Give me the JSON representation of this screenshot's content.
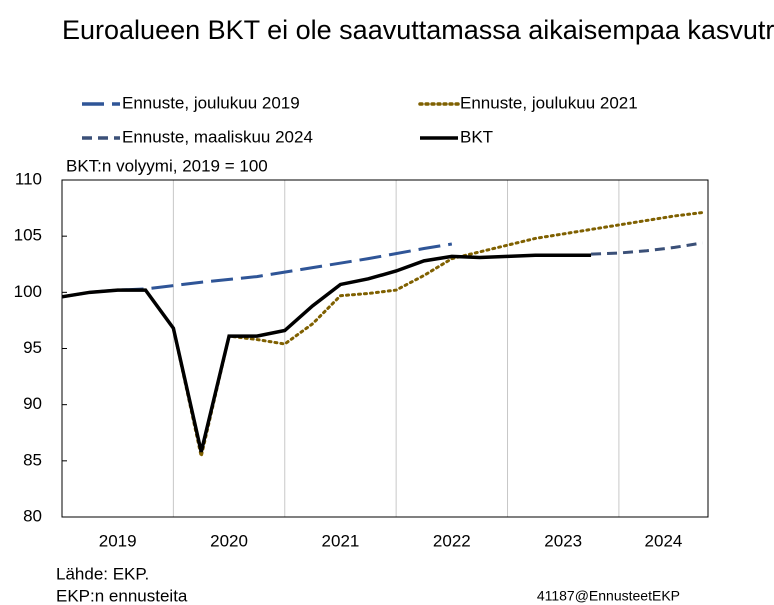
{
  "chart_data": {
    "type": "line",
    "title": "Euroalueen BKT ei ole saavuttamassa aikaisempaa kasvutrendiään",
    "subtitle": "BKT:n volyymi, 2019 = 100",
    "source": "Lähde: EKP.",
    "note": "EKP:n ennusteita",
    "credit": "41187@EnnusteetEKP",
    "xlim": [
      2019,
      2024.8
    ],
    "xticks": [
      {
        "value": 2019.5,
        "label": "2019"
      },
      {
        "value": 2020.5,
        "label": "2020"
      },
      {
        "value": 2021.5,
        "label": "2021"
      },
      {
        "value": 2022.5,
        "label": "2022"
      },
      {
        "value": 2023.5,
        "label": "2023"
      },
      {
        "value": 2024.4,
        "label": "2024"
      }
    ],
    "xgrid": [
      2020,
      2021,
      2022,
      2023,
      2024
    ],
    "ylim": [
      80,
      110
    ],
    "yticks": [
      80,
      85,
      90,
      95,
      100,
      105,
      110
    ],
    "series": [
      {
        "name": "Ennuste, joulukuu 2019",
        "color": "#2f5597",
        "dash": "long",
        "x": [
          2019,
          2019.25,
          2019.5,
          2019.75,
          2020.25,
          2020.75,
          2021.25,
          2021.75,
          2022.25,
          2022.5
        ],
        "values": [
          99.6,
          100.0,
          100.2,
          100.3,
          100.9,
          101.4,
          102.2,
          103.0,
          103.9,
          104.3
        ]
      },
      {
        "name": "Ennuste, joulukuu 2021",
        "color": "#7f6000",
        "dash": "dot",
        "x": [
          2019.75,
          2020,
          2020.25,
          2020.5,
          2020.75,
          2021,
          2021.25,
          2021.5,
          2021.75,
          2022,
          2022.25,
          2022.5,
          2022.75,
          2023,
          2023.25,
          2023.5,
          2023.75,
          2024,
          2024.25,
          2024.5,
          2024.75
        ],
        "values": [
          100.2,
          96.8,
          85.4,
          96.1,
          95.8,
          95.4,
          97.2,
          99.7,
          99.9,
          100.2,
          101.5,
          103.0,
          103.6,
          104.2,
          104.8,
          105.2,
          105.6,
          106.0,
          106.4,
          106.8,
          107.1
        ]
      },
      {
        "name": "Ennuste, maaliskuu 2024",
        "color": "#3b5078",
        "dash": "short",
        "x": [
          2023.75,
          2024,
          2024.25,
          2024.5,
          2024.75
        ],
        "values": [
          103.4,
          103.5,
          103.7,
          104.0,
          104.4
        ]
      },
      {
        "name": "BKT",
        "color": "#000000",
        "dash": "solid",
        "x": [
          2019,
          2019.25,
          2019.5,
          2019.75,
          2020,
          2020.25,
          2020.5,
          2020.75,
          2021,
          2021.25,
          2021.5,
          2021.75,
          2022,
          2022.25,
          2022.5,
          2022.75,
          2023,
          2023.25,
          2023.5,
          2023.75
        ],
        "values": [
          99.6,
          100.0,
          100.2,
          100.2,
          96.8,
          85.8,
          96.1,
          96.1,
          96.6,
          98.8,
          100.7,
          101.2,
          101.9,
          102.8,
          103.2,
          103.1,
          103.2,
          103.3,
          103.3,
          103.3
        ]
      }
    ]
  }
}
